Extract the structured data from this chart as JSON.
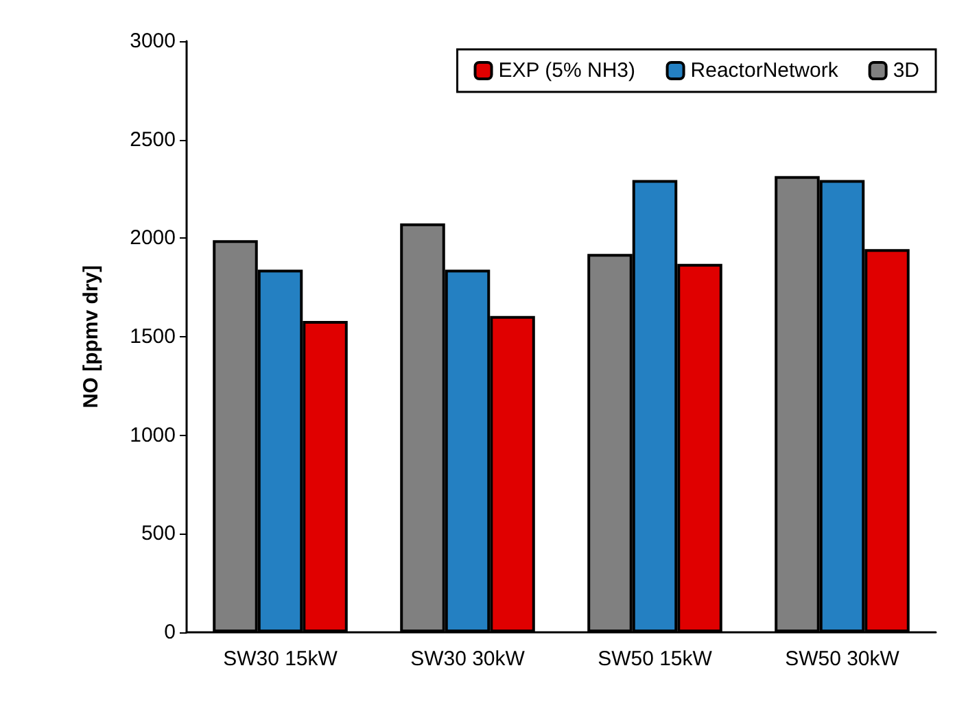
{
  "chart_data": {
    "type": "bar",
    "ylabel": "NO [ppmv dry]",
    "categories": [
      "SW30 15kW",
      "SW30 30kW",
      "SW50 15kW",
      "SW50 30kW"
    ],
    "series": [
      {
        "name": "3D",
        "color": "#808080",
        "values": [
          1990,
          2075,
          1920,
          2315
        ]
      },
      {
        "name": "ReactorNetwork",
        "color": "#2480c2",
        "values": [
          1840,
          1840,
          2295,
          2295
        ]
      },
      {
        "name": "EXP (5% NH3)",
        "color": "#e00000",
        "values": [
          1580,
          1605,
          1870,
          1945
        ]
      }
    ],
    "ylim": [
      0,
      3000
    ],
    "yticks": [
      0,
      500,
      1000,
      1500,
      2000,
      2500,
      3000
    ],
    "grid": false,
    "legend": "top"
  }
}
